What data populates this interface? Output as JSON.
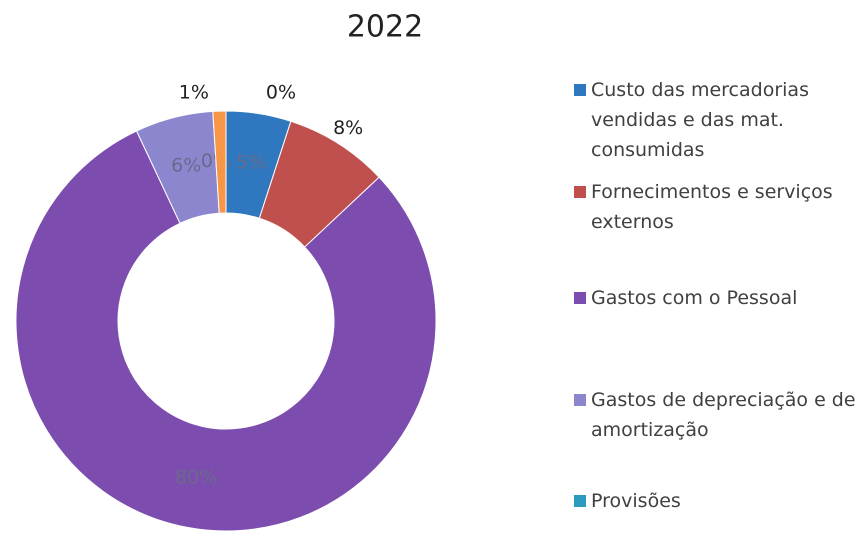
{
  "chart_data": {
    "type": "donut",
    "title": "2022",
    "categories": [
      "Custo das mercadorias vendidas e das mat. consumidas",
      "Fornecimentos e serviços externos",
      "Gastos com o Pessoal",
      "Gastos de depreciação e de amortização",
      "Provisões",
      null,
      null
    ],
    "values": [
      5,
      8,
      80,
      6,
      0,
      1,
      0
    ],
    "value_labels": [
      "5%",
      "8%",
      "80%",
      "6%",
      "0%",
      "1%",
      "0%"
    ],
    "colors": [
      "#2f78c0",
      "#c0504d",
      "#7c4caf",
      "#8c86cf",
      "#2a9bbf",
      "#f79646",
      "#4bacc6"
    ]
  }
}
